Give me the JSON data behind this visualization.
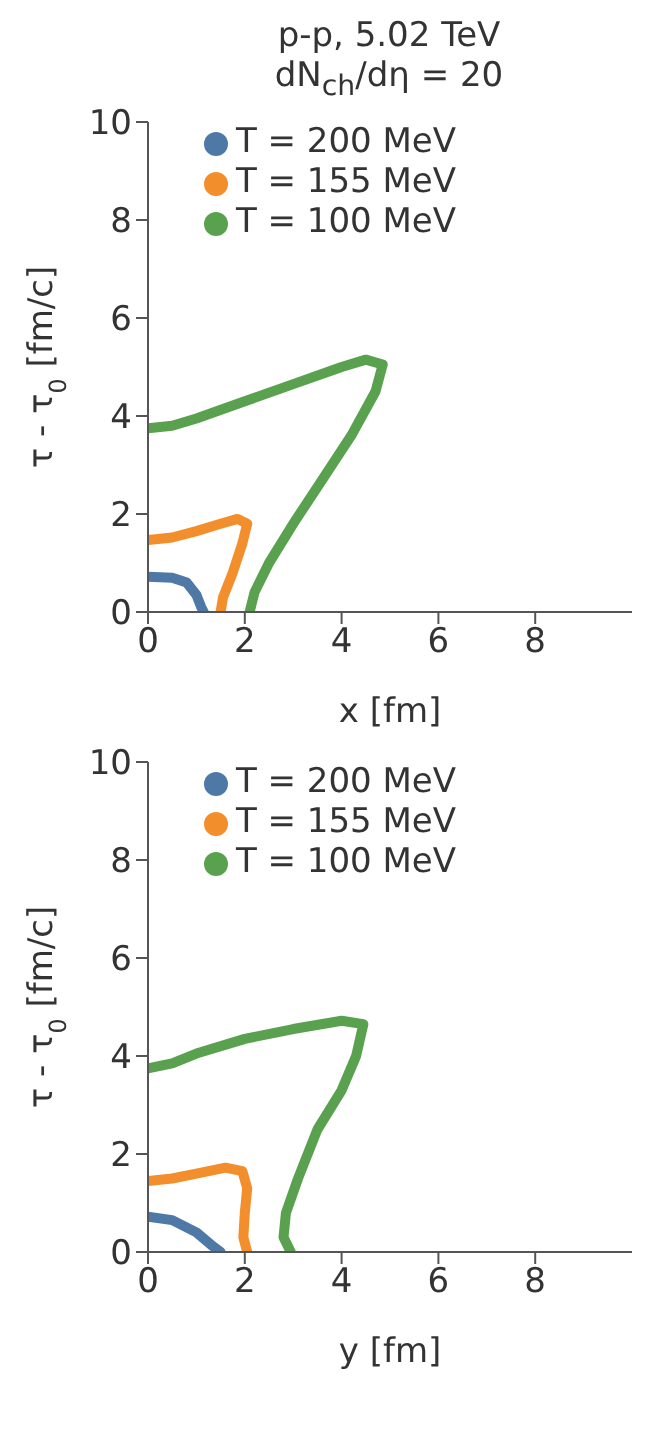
{
  "chart_data": [
    {
      "type": "line",
      "title": "p-p, 5.02 TeV",
      "subtitle": "dN$_{ch}$/dη = 20",
      "xlabel": "x [fm]",
      "ylabel": "τ - τ$_{0}$ [fm/c]",
      "xlim": [
        0,
        10
      ],
      "xticks": [
        0,
        2,
        4,
        6,
        8
      ],
      "ylim": [
        0,
        10
      ],
      "yticks": [
        0,
        2,
        4,
        6,
        8,
        10
      ],
      "grid": false,
      "legend": "top left",
      "marker": "none",
      "line_style": "solid",
      "series": [
        {
          "name": "T = 200 MeV",
          "color": "#4e79a7",
          "x": [
            0,
            0.5,
            0.8,
            1.0,
            1.1,
            1.15
          ],
          "values": [
            0.72,
            0.7,
            0.6,
            0.35,
            0.1,
            0
          ]
        },
        {
          "name": "T = 155 MeV",
          "color": "#f28e2b",
          "x": [
            0,
            0.5,
            1.0,
            1.5,
            1.85,
            2.05,
            1.95,
            1.75,
            1.55,
            1.5
          ],
          "values": [
            1.47,
            1.52,
            1.65,
            1.8,
            1.9,
            1.8,
            1.4,
            0.8,
            0.3,
            0
          ]
        },
        {
          "name": "T = 100 MeV",
          "color": "#59a14f",
          "x": [
            0,
            0.5,
            1,
            2,
            3,
            4,
            4.5,
            4.85,
            4.7,
            4.2,
            3.6,
            3.0,
            2.5,
            2.2,
            2.1
          ],
          "values": [
            3.75,
            3.8,
            3.95,
            4.3,
            4.65,
            5.0,
            5.15,
            5.05,
            4.5,
            3.6,
            2.7,
            1.8,
            1.0,
            0.4,
            0
          ]
        }
      ]
    },
    {
      "type": "line",
      "xlabel": "y [fm]",
      "ylabel": "τ - τ$_{0}$ [fm/c]",
      "xlim": [
        0,
        10
      ],
      "xticks": [
        0,
        2,
        4,
        6,
        8
      ],
      "ylim": [
        0,
        10
      ],
      "yticks": [
        0,
        2,
        4,
        6,
        8,
        10
      ],
      "grid": false,
      "legend": "top left",
      "marker": "none",
      "line_style": "solid",
      "series": [
        {
          "name": "T = 200 MeV",
          "color": "#4e79a7",
          "x": [
            0,
            0.5,
            1.0,
            1.3,
            1.5
          ],
          "values": [
            0.72,
            0.65,
            0.4,
            0.15,
            0
          ]
        },
        {
          "name": "T = 155 MeV",
          "color": "#f28e2b",
          "x": [
            0,
            0.5,
            1.0,
            1.6,
            1.95,
            2.05,
            2.0,
            1.97,
            2.05
          ],
          "values": [
            1.45,
            1.5,
            1.6,
            1.72,
            1.65,
            1.3,
            0.8,
            0.3,
            0
          ]
        },
        {
          "name": "T = 100 MeV",
          "color": "#59a14f",
          "x": [
            0,
            0.5,
            1,
            2,
            3,
            4,
            4.45,
            4.3,
            4.0,
            3.5,
            3.1,
            2.85,
            2.8,
            2.95
          ],
          "values": [
            3.75,
            3.85,
            4.05,
            4.35,
            4.55,
            4.72,
            4.65,
            4.0,
            3.3,
            2.5,
            1.5,
            0.8,
            0.3,
            0
          ]
        }
      ]
    }
  ]
}
